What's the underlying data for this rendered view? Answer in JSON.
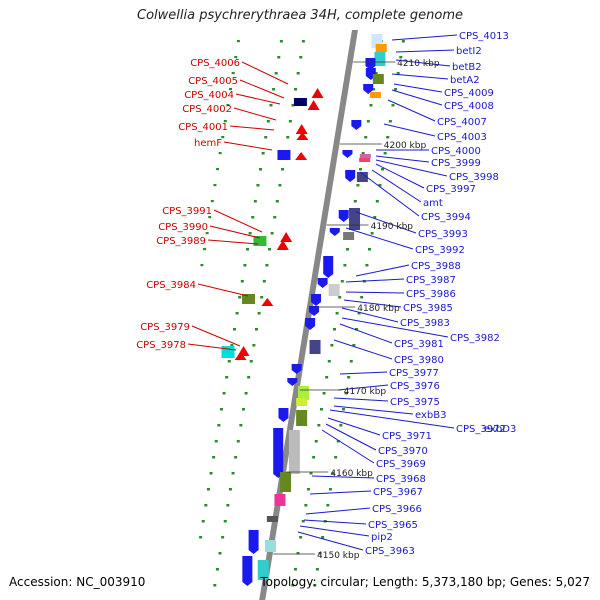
{
  "title": "Colwellia psychrerythraea 34H, complete genome",
  "footer": {
    "accession": "Accession: NC_003910",
    "summary": "Topology: circular; Length: 5,373,180 bp; Genes: 5,027"
  },
  "colors": {
    "forward": "#ee0000",
    "reverse": "#1a1aee",
    "label_left": "#cc0000",
    "label_right": "#1a1acc",
    "backbone": "#888888",
    "dots": "#2e8b2e"
  },
  "scale_labels": [
    "4210 kbp",
    "4200 kbp",
    "4190 kbp",
    "4180 kbp",
    "4170 kbp",
    "4160 kbp",
    "4150 kbp"
  ],
  "left_labels": [
    "CPS_4006",
    "CPS_4005",
    "CPS_4004",
    "CPS_4002",
    "CPS_4001",
    "hemF",
    "CPS_3991",
    "CPS_3990",
    "CPS_3989",
    "CPS_3984",
    "CPS_3979",
    "CPS_3978"
  ],
  "right_labels": [
    "CPS_4013",
    "betI2",
    "betB2",
    "betA2",
    "CPS_4009",
    "CPS_4008",
    "CPS_4007",
    "CPS_4003",
    "CPS_4000",
    "CPS_3999",
    "CPS_3998",
    "CPS_3997",
    "amt",
    "CPS_3994",
    "CPS_3993",
    "CPS_3992",
    "CPS_3988",
    "CPS_3987",
    "CPS_3986",
    "CPS_3985",
    "CPS_3983",
    "CPS_3982",
    "CPS_3981",
    "CPS_3980",
    "CPS_3977",
    "CPS_3976",
    "CPS_3975",
    "exbB3",
    "CPS_3972",
    "exbD3",
    "CPS_3971",
    "CPS_3970",
    "CPS_3969",
    "CPS_3968",
    "CPS_3967",
    "CPS_3966",
    "CPS_3965",
    "pip2",
    "CPS_3963"
  ]
}
